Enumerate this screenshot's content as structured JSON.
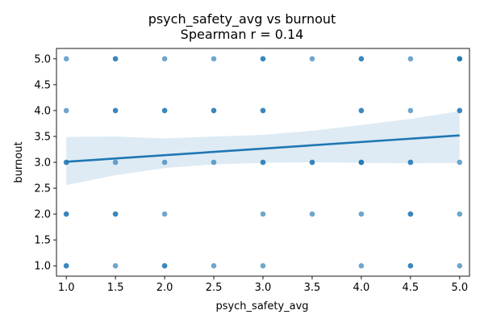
{
  "chart_data": {
    "type": "scatter",
    "title": "psych_safety_avg vs burnout",
    "subtitle": "Spearman r = 0.14",
    "xlabel": "psych_safety_avg",
    "ylabel": "burnout",
    "xlim": [
      0.9,
      5.1
    ],
    "ylim": [
      0.8,
      5.2
    ],
    "xticks": [
      1.0,
      1.5,
      2.0,
      2.5,
      3.0,
      3.5,
      4.0,
      4.5,
      5.0
    ],
    "yticks": [
      1.0,
      1.5,
      2.0,
      2.5,
      3.0,
      3.5,
      4.0,
      4.5,
      5.0
    ],
    "tick_labels_x": [
      "1.0",
      "1.5",
      "2.0",
      "2.5",
      "3.0",
      "3.5",
      "4.0",
      "4.5",
      "5.0"
    ],
    "tick_labels_y": [
      "1.0",
      "1.5",
      "2.0",
      "2.5",
      "3.0",
      "3.5",
      "4.0",
      "4.5",
      "5.0"
    ],
    "grid": false,
    "colors": {
      "points": "#1f77b4",
      "line": "#1f77b4",
      "band": "#1f77b4"
    },
    "points": [
      {
        "x": 1.0,
        "y": 5.0
      },
      {
        "x": 1.0,
        "y": 4.0
      },
      {
        "x": 1.0,
        "y": 3.0
      },
      {
        "x": 1.0,
        "y": 3.0
      },
      {
        "x": 1.0,
        "y": 2.0
      },
      {
        "x": 1.0,
        "y": 2.0
      },
      {
        "x": 1.0,
        "y": 1.0
      },
      {
        "x": 1.0,
        "y": 1.0
      },
      {
        "x": 1.5,
        "y": 5.0
      },
      {
        "x": 1.5,
        "y": 5.0
      },
      {
        "x": 1.5,
        "y": 4.0
      },
      {
        "x": 1.5,
        "y": 4.0
      },
      {
        "x": 1.5,
        "y": 3.0
      },
      {
        "x": 1.5,
        "y": 2.0
      },
      {
        "x": 1.5,
        "y": 2.0
      },
      {
        "x": 1.5,
        "y": 1.0
      },
      {
        "x": 2.0,
        "y": 5.0
      },
      {
        "x": 2.0,
        "y": 4.0
      },
      {
        "x": 2.0,
        "y": 4.0
      },
      {
        "x": 2.0,
        "y": 3.0
      },
      {
        "x": 2.0,
        "y": 2.0
      },
      {
        "x": 2.0,
        "y": 1.0
      },
      {
        "x": 2.0,
        "y": 1.0
      },
      {
        "x": 2.5,
        "y": 5.0
      },
      {
        "x": 2.5,
        "y": 4.0
      },
      {
        "x": 2.5,
        "y": 4.0
      },
      {
        "x": 2.5,
        "y": 3.0
      },
      {
        "x": 2.5,
        "y": 1.0
      },
      {
        "x": 3.0,
        "y": 5.0
      },
      {
        "x": 3.0,
        "y": 5.0
      },
      {
        "x": 3.0,
        "y": 4.0
      },
      {
        "x": 3.0,
        "y": 4.0
      },
      {
        "x": 3.0,
        "y": 3.0
      },
      {
        "x": 3.0,
        "y": 3.0
      },
      {
        "x": 3.0,
        "y": 2.0
      },
      {
        "x": 3.0,
        "y": 1.0
      },
      {
        "x": 3.5,
        "y": 5.0
      },
      {
        "x": 3.5,
        "y": 3.0
      },
      {
        "x": 3.5,
        "y": 3.0
      },
      {
        "x": 3.5,
        "y": 2.0
      },
      {
        "x": 4.0,
        "y": 5.0
      },
      {
        "x": 4.0,
        "y": 5.0
      },
      {
        "x": 4.0,
        "y": 4.0
      },
      {
        "x": 4.0,
        "y": 4.0
      },
      {
        "x": 4.0,
        "y": 3.0
      },
      {
        "x": 4.0,
        "y": 3.0
      },
      {
        "x": 4.0,
        "y": 3.0
      },
      {
        "x": 4.0,
        "y": 2.0
      },
      {
        "x": 4.0,
        "y": 1.0
      },
      {
        "x": 4.5,
        "y": 5.0
      },
      {
        "x": 4.5,
        "y": 4.0
      },
      {
        "x": 4.5,
        "y": 3.0
      },
      {
        "x": 4.5,
        "y": 3.0
      },
      {
        "x": 4.5,
        "y": 2.0
      },
      {
        "x": 4.5,
        "y": 2.0
      },
      {
        "x": 4.5,
        "y": 1.0
      },
      {
        "x": 4.5,
        "y": 1.0
      },
      {
        "x": 5.0,
        "y": 5.0
      },
      {
        "x": 5.0,
        "y": 5.0
      },
      {
        "x": 5.0,
        "y": 5.0
      },
      {
        "x": 5.0,
        "y": 4.0
      },
      {
        "x": 5.0,
        "y": 4.0
      },
      {
        "x": 5.0,
        "y": 3.0
      },
      {
        "x": 5.0,
        "y": 2.0
      },
      {
        "x": 5.0,
        "y": 1.0
      }
    ],
    "regression_line": {
      "x": [
        1.0,
        5.0
      ],
      "y": [
        3.01,
        3.52
      ]
    },
    "confidence_band": {
      "x": [
        1.0,
        1.5,
        2.0,
        2.5,
        3.0,
        3.5,
        4.0,
        4.5,
        5.0
      ],
      "lower": [
        2.56,
        2.75,
        2.89,
        2.96,
        2.99,
        3.0,
        2.99,
        2.98,
        2.99
      ],
      "upper": [
        3.49,
        3.5,
        3.46,
        3.5,
        3.53,
        3.61,
        3.72,
        3.84,
        3.99
      ]
    }
  }
}
